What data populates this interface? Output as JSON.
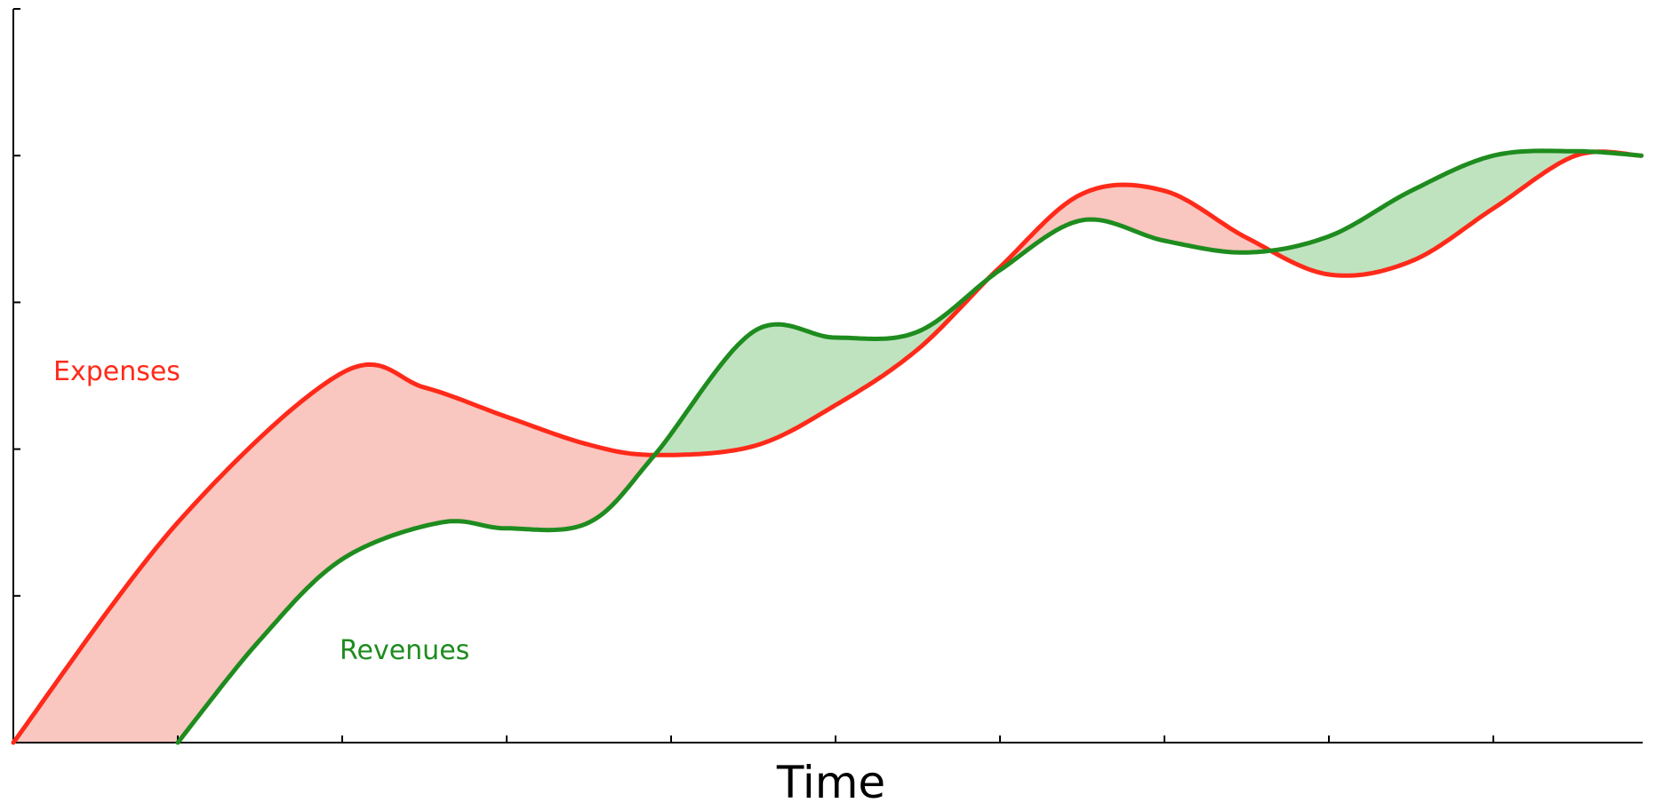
{
  "chart_data": {
    "type": "line",
    "title": "",
    "xlabel": "Time",
    "ylabel": "",
    "xlim": [
      0,
      10
    ],
    "ylim": [
      0,
      5
    ],
    "x_ticks": [
      0,
      1,
      2,
      3,
      4,
      5,
      6,
      7,
      8,
      9,
      10
    ],
    "y_ticks": [
      0,
      1,
      2,
      3,
      4,
      5
    ],
    "tick_labels_shown": false,
    "grid": false,
    "legend": "none (direct labels)",
    "fill_between": true,
    "series": [
      {
        "name": "Expenses",
        "color": "#ff2a1a",
        "fill_color_when_higher": "#f9c6c0",
        "x": [
          0.0,
          1.0,
          2.0,
          2.5,
          3.0,
          3.5,
          3.9,
          4.5,
          5.0,
          5.5,
          6.0,
          6.5,
          7.0,
          7.5,
          8.0,
          8.5,
          9.0,
          9.5,
          9.9
        ],
        "y": [
          0.0,
          1.5,
          2.52,
          2.42,
          2.22,
          2.03,
          1.96,
          2.02,
          2.3,
          2.68,
          3.24,
          3.74,
          3.76,
          3.44,
          3.19,
          3.28,
          3.64,
          4.0,
          4.0
        ]
      },
      {
        "name": "Revenues",
        "color": "#1e8c1e",
        "fill_color_when_higher": "#bfe3bf",
        "x": [
          1.0,
          1.5,
          2.0,
          2.6,
          3.0,
          3.5,
          3.9,
          4.5,
          5.0,
          5.5,
          6.0,
          6.5,
          7.0,
          7.5,
          8.0,
          8.5,
          9.0,
          9.5,
          9.9
        ],
        "y": [
          0.0,
          0.7,
          1.25,
          1.5,
          1.46,
          1.5,
          1.96,
          2.8,
          2.76,
          2.8,
          3.22,
          3.56,
          3.42,
          3.34,
          3.45,
          3.76,
          4.0,
          4.03,
          4.0
        ]
      }
    ]
  }
}
